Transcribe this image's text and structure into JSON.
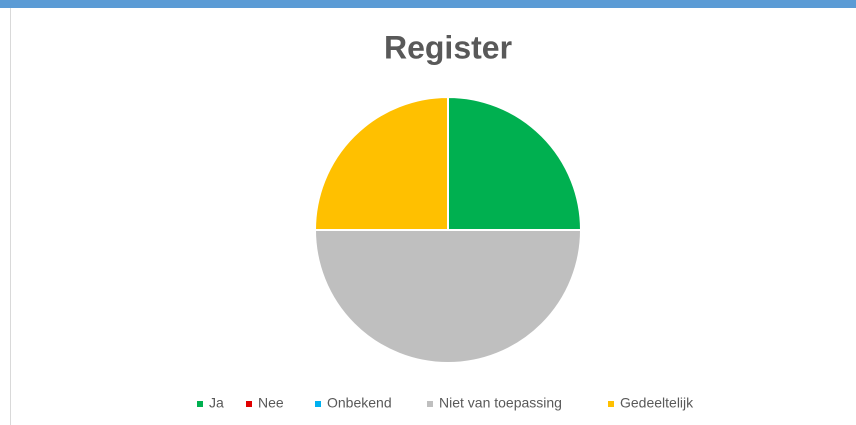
{
  "chart_data": {
    "type": "pie",
    "title": "Register",
    "categories": [
      "Ja",
      "Nee",
      "Onbekend",
      "Niet van toepassing",
      "Gedeeltelijk"
    ],
    "values": [
      25,
      0,
      0,
      50,
      25
    ],
    "colors": [
      "#00b050",
      "#e00000",
      "#00b0f0",
      "#bfbfbf",
      "#ffc000"
    ],
    "legend": "bottom"
  }
}
